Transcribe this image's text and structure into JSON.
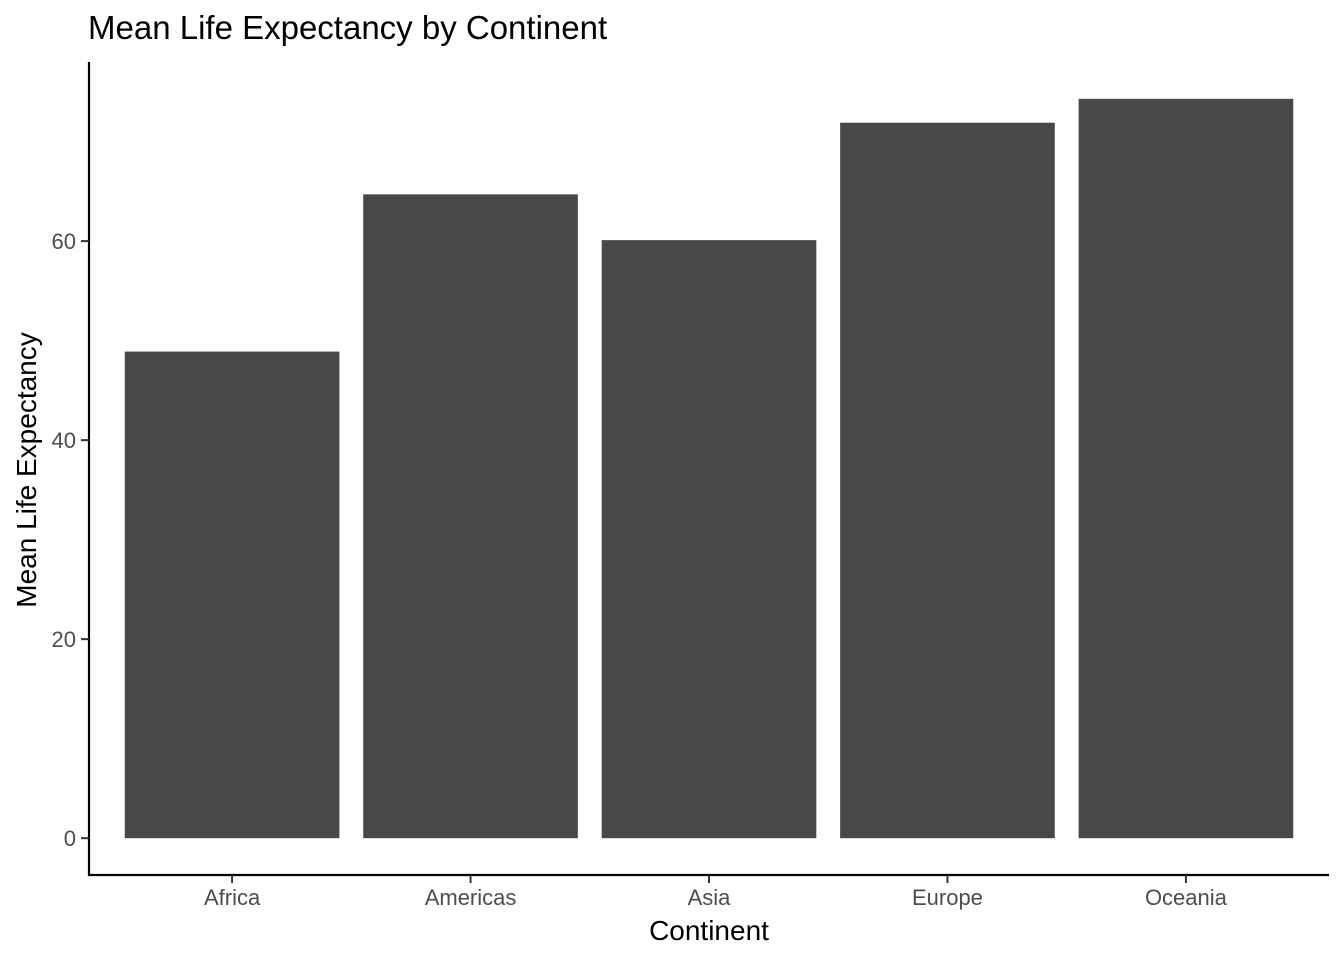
{
  "chart_data": {
    "type": "bar",
    "title": "Mean Life Expectancy by Continent",
    "xlabel": "Continent",
    "ylabel": "Mean Life Expectancy",
    "categories": [
      "Africa",
      "Americas",
      "Asia",
      "Europe",
      "Oceania"
    ],
    "values": [
      48.9,
      64.7,
      60.1,
      71.9,
      74.3
    ],
    "ylim": [
      -3.7,
      78
    ],
    "yticks": [
      0,
      20,
      40,
      60
    ],
    "ytick_labels": [
      "0",
      "20",
      "40",
      "60"
    ],
    "grid": false,
    "legend": "none",
    "colors": {
      "bar": "#484848",
      "axis": "#000000",
      "tick_text": "#4d4d4d"
    }
  }
}
